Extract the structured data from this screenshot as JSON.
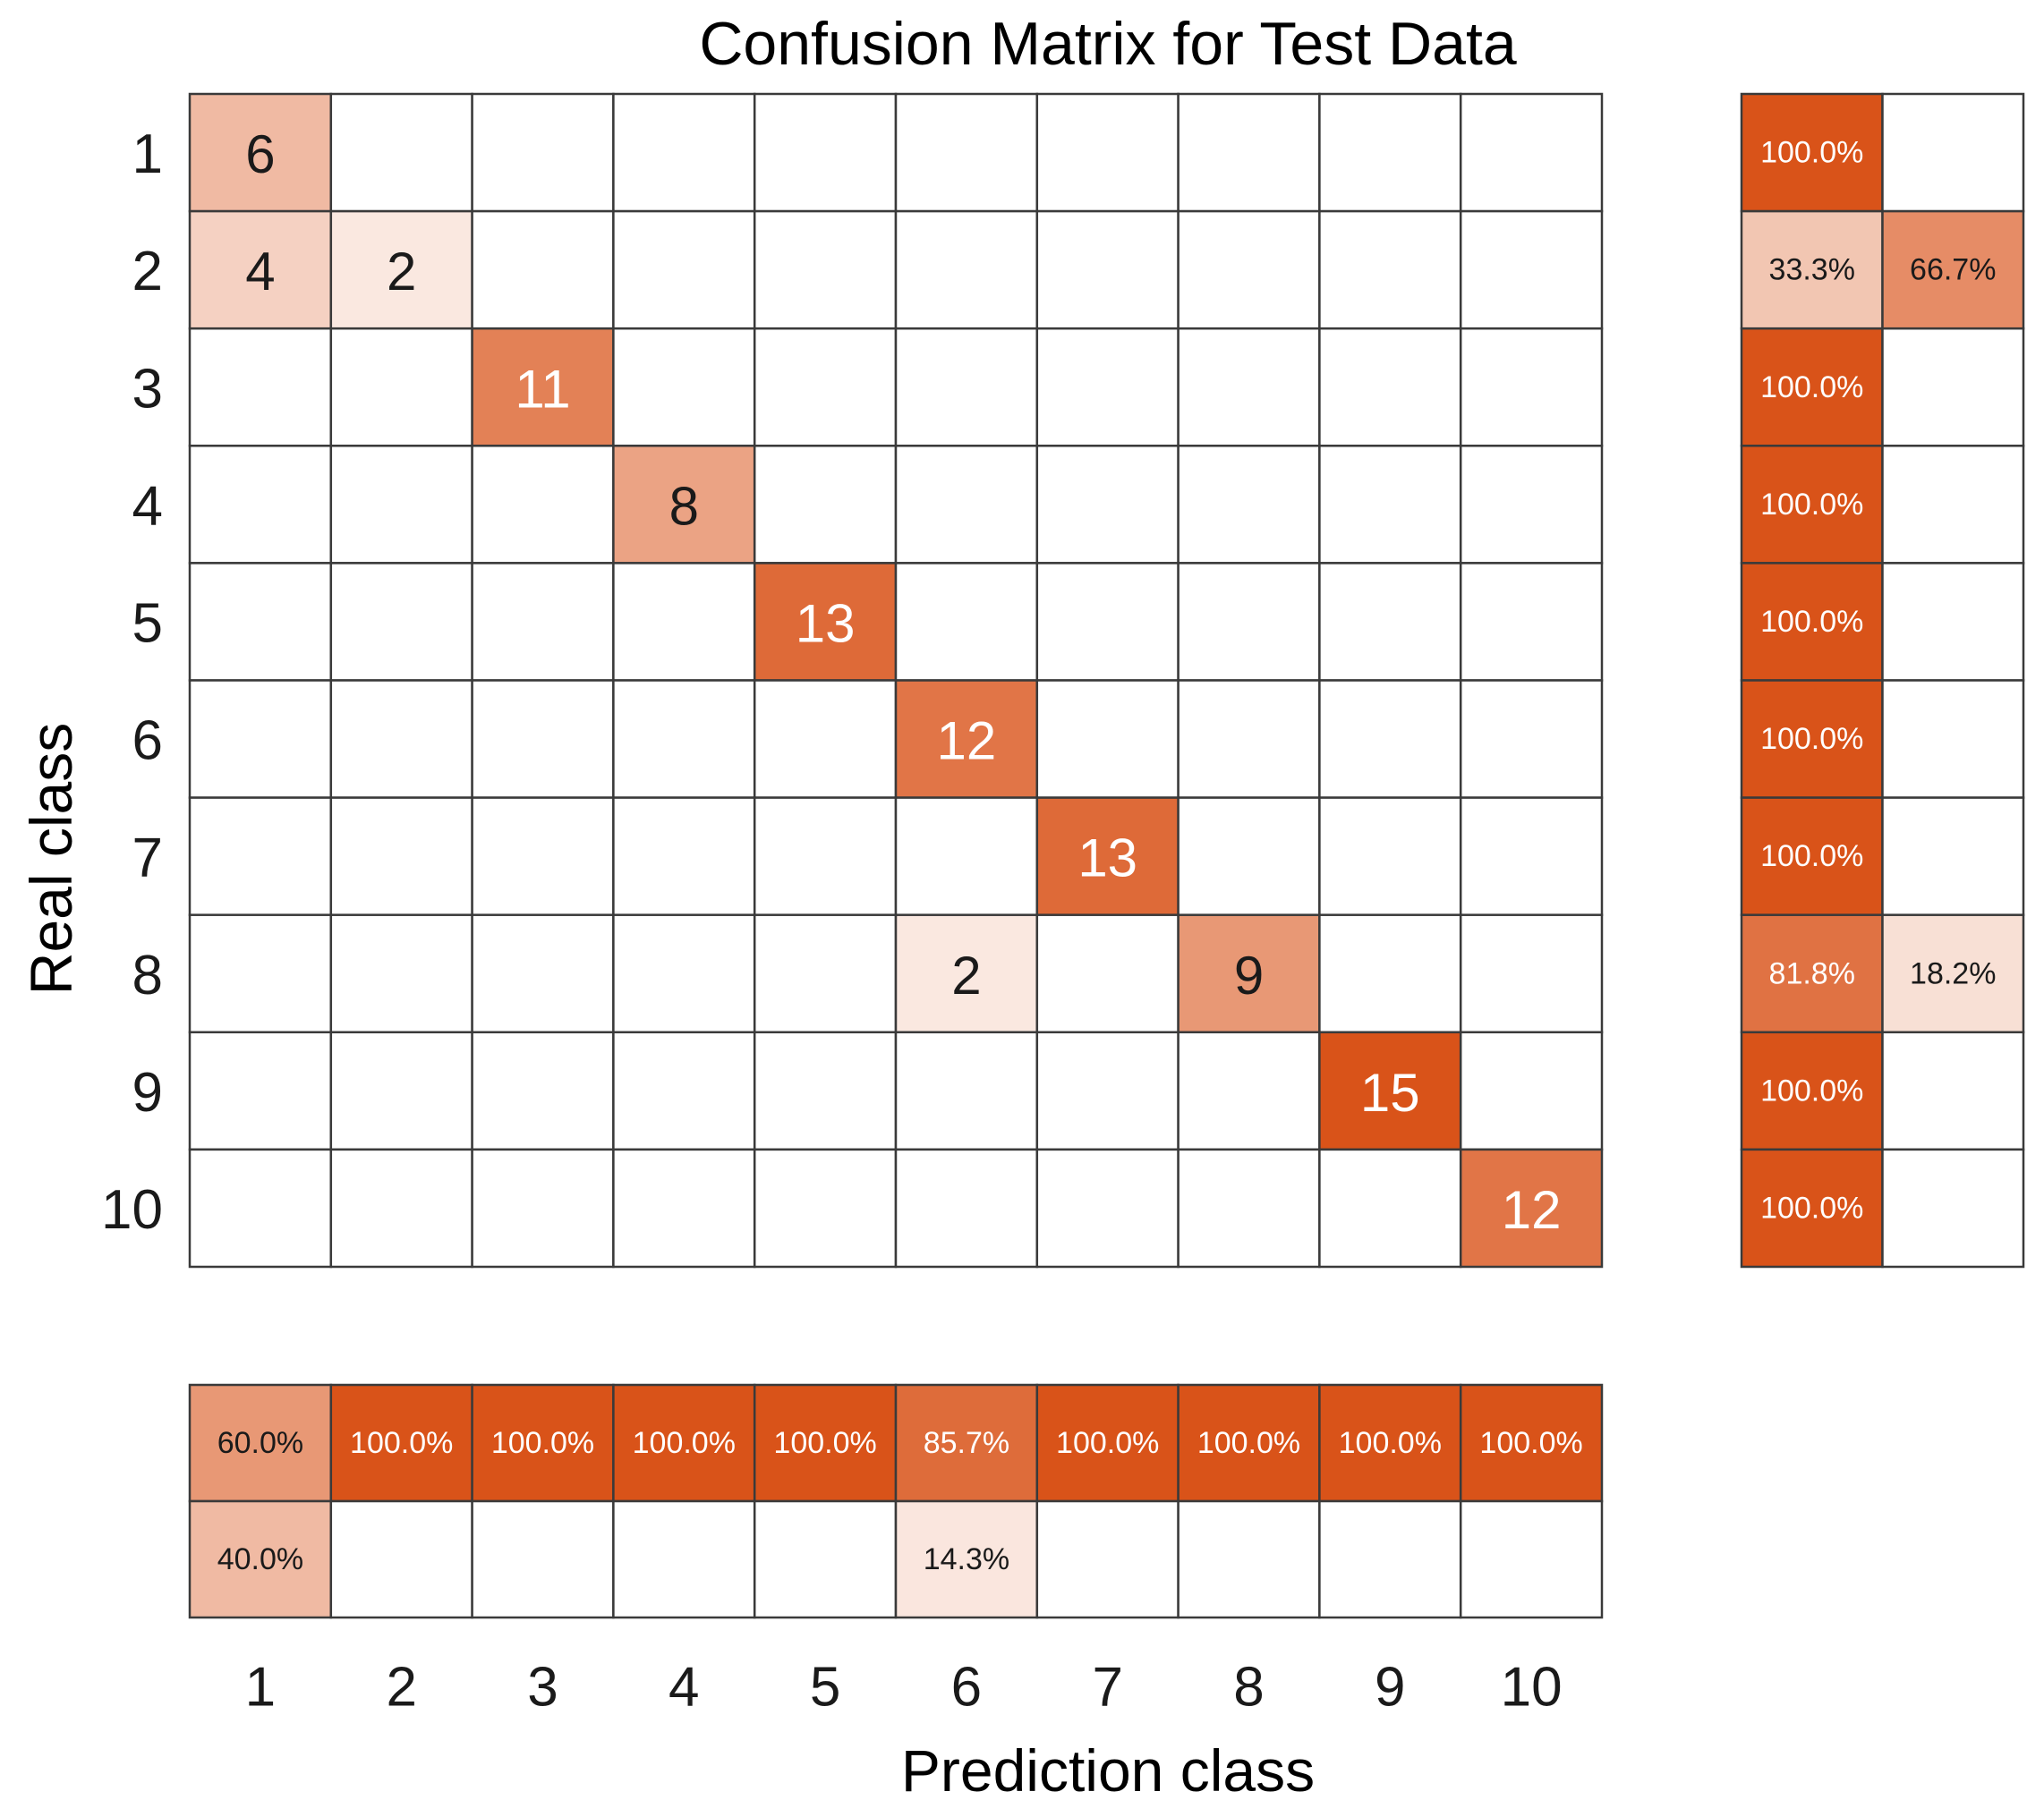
{
  "chart_data": {
    "type": "heatmap",
    "title": "Confusion Matrix for Test Data",
    "xlabel": "Prediction class",
    "ylabel": "Real class",
    "classes": [
      "1",
      "2",
      "3",
      "4",
      "5",
      "6",
      "7",
      "8",
      "9",
      "10"
    ],
    "matrix": [
      [
        6,
        0,
        0,
        0,
        0,
        0,
        0,
        0,
        0,
        0
      ],
      [
        4,
        2,
        0,
        0,
        0,
        0,
        0,
        0,
        0,
        0
      ],
      [
        0,
        0,
        11,
        0,
        0,
        0,
        0,
        0,
        0,
        0
      ],
      [
        0,
        0,
        0,
        8,
        0,
        0,
        0,
        0,
        0,
        0
      ],
      [
        0,
        0,
        0,
        0,
        13,
        0,
        0,
        0,
        0,
        0
      ],
      [
        0,
        0,
        0,
        0,
        0,
        12,
        0,
        0,
        0,
        0
      ],
      [
        0,
        0,
        0,
        0,
        0,
        0,
        13,
        0,
        0,
        0
      ],
      [
        0,
        0,
        0,
        0,
        0,
        2,
        0,
        9,
        0,
        0
      ],
      [
        0,
        0,
        0,
        0,
        0,
        0,
        0,
        0,
        15,
        0
      ],
      [
        0,
        0,
        0,
        0,
        0,
        0,
        0,
        0,
        0,
        12
      ]
    ],
    "row_summary": {
      "correct": [
        100.0,
        33.3,
        100.0,
        100.0,
        100.0,
        100.0,
        100.0,
        81.8,
        100.0,
        100.0
      ],
      "incorrect": [
        0,
        66.7,
        0,
        0,
        0,
        0,
        0,
        18.2,
        0,
        0
      ]
    },
    "column_summary": {
      "correct": [
        60.0,
        100.0,
        100.0,
        100.0,
        100.0,
        85.7,
        100.0,
        100.0,
        100.0,
        100.0
      ],
      "incorrect": [
        40.0,
        0,
        0,
        0,
        0,
        14.3,
        0,
        0,
        0,
        0
      ]
    },
    "colors": {
      "high": "#d95319",
      "low": "#ffffff",
      "grid": "#3a3a3a"
    }
  }
}
